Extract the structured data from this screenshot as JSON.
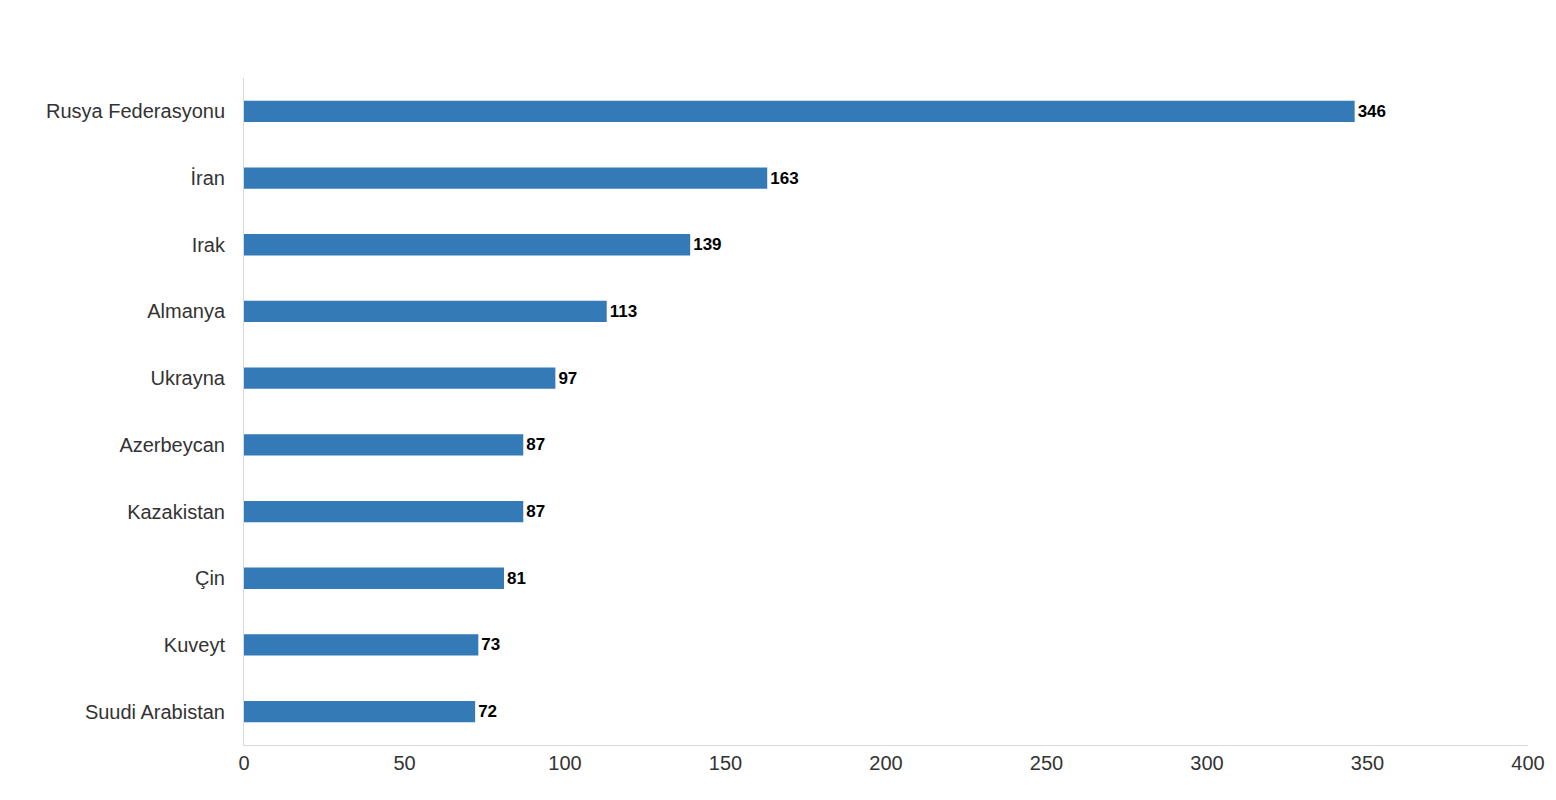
{
  "chart_data": {
    "type": "bar",
    "orientation": "horizontal",
    "categories": [
      "Rusya Federasyonu",
      "İran",
      "Irak",
      "Almanya",
      "Ukrayna",
      "Azerbeycan",
      "Kazakistan",
      "Çin",
      "Kuveyt",
      "Suudi Arabistan"
    ],
    "values": [
      346,
      163,
      139,
      113,
      97,
      87,
      87,
      81,
      73,
      72
    ],
    "color": "#337ab7",
    "xlim": [
      0,
      400
    ],
    "xticks": [
      0,
      50,
      100,
      150,
      200,
      250,
      300,
      350,
      400
    ],
    "grid": false,
    "data_labels": true
  }
}
